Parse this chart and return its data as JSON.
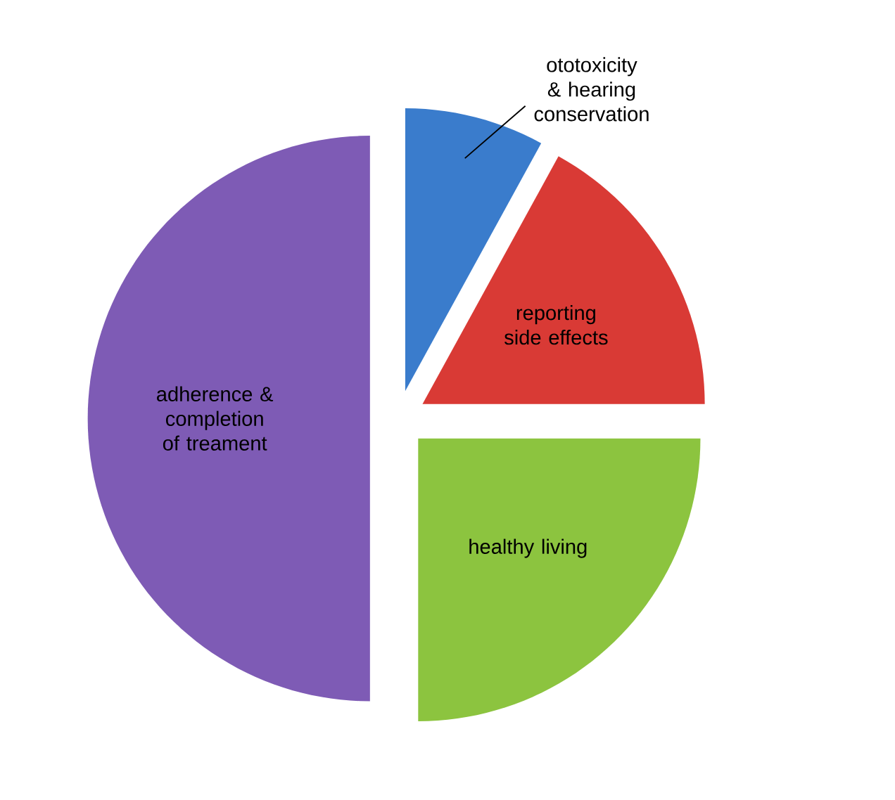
{
  "chart_data": {
    "type": "pie",
    "categories": [
      "ototoxicity & hearing conservation",
      "reporting side effects",
      "healthy living",
      "adherence & completion of treament"
    ],
    "values": [
      8,
      17,
      25,
      50
    ],
    "colors": [
      "#3a7ccc",
      "#d93a35",
      "#8cc43f",
      "#7e5bb5"
    ]
  }
}
